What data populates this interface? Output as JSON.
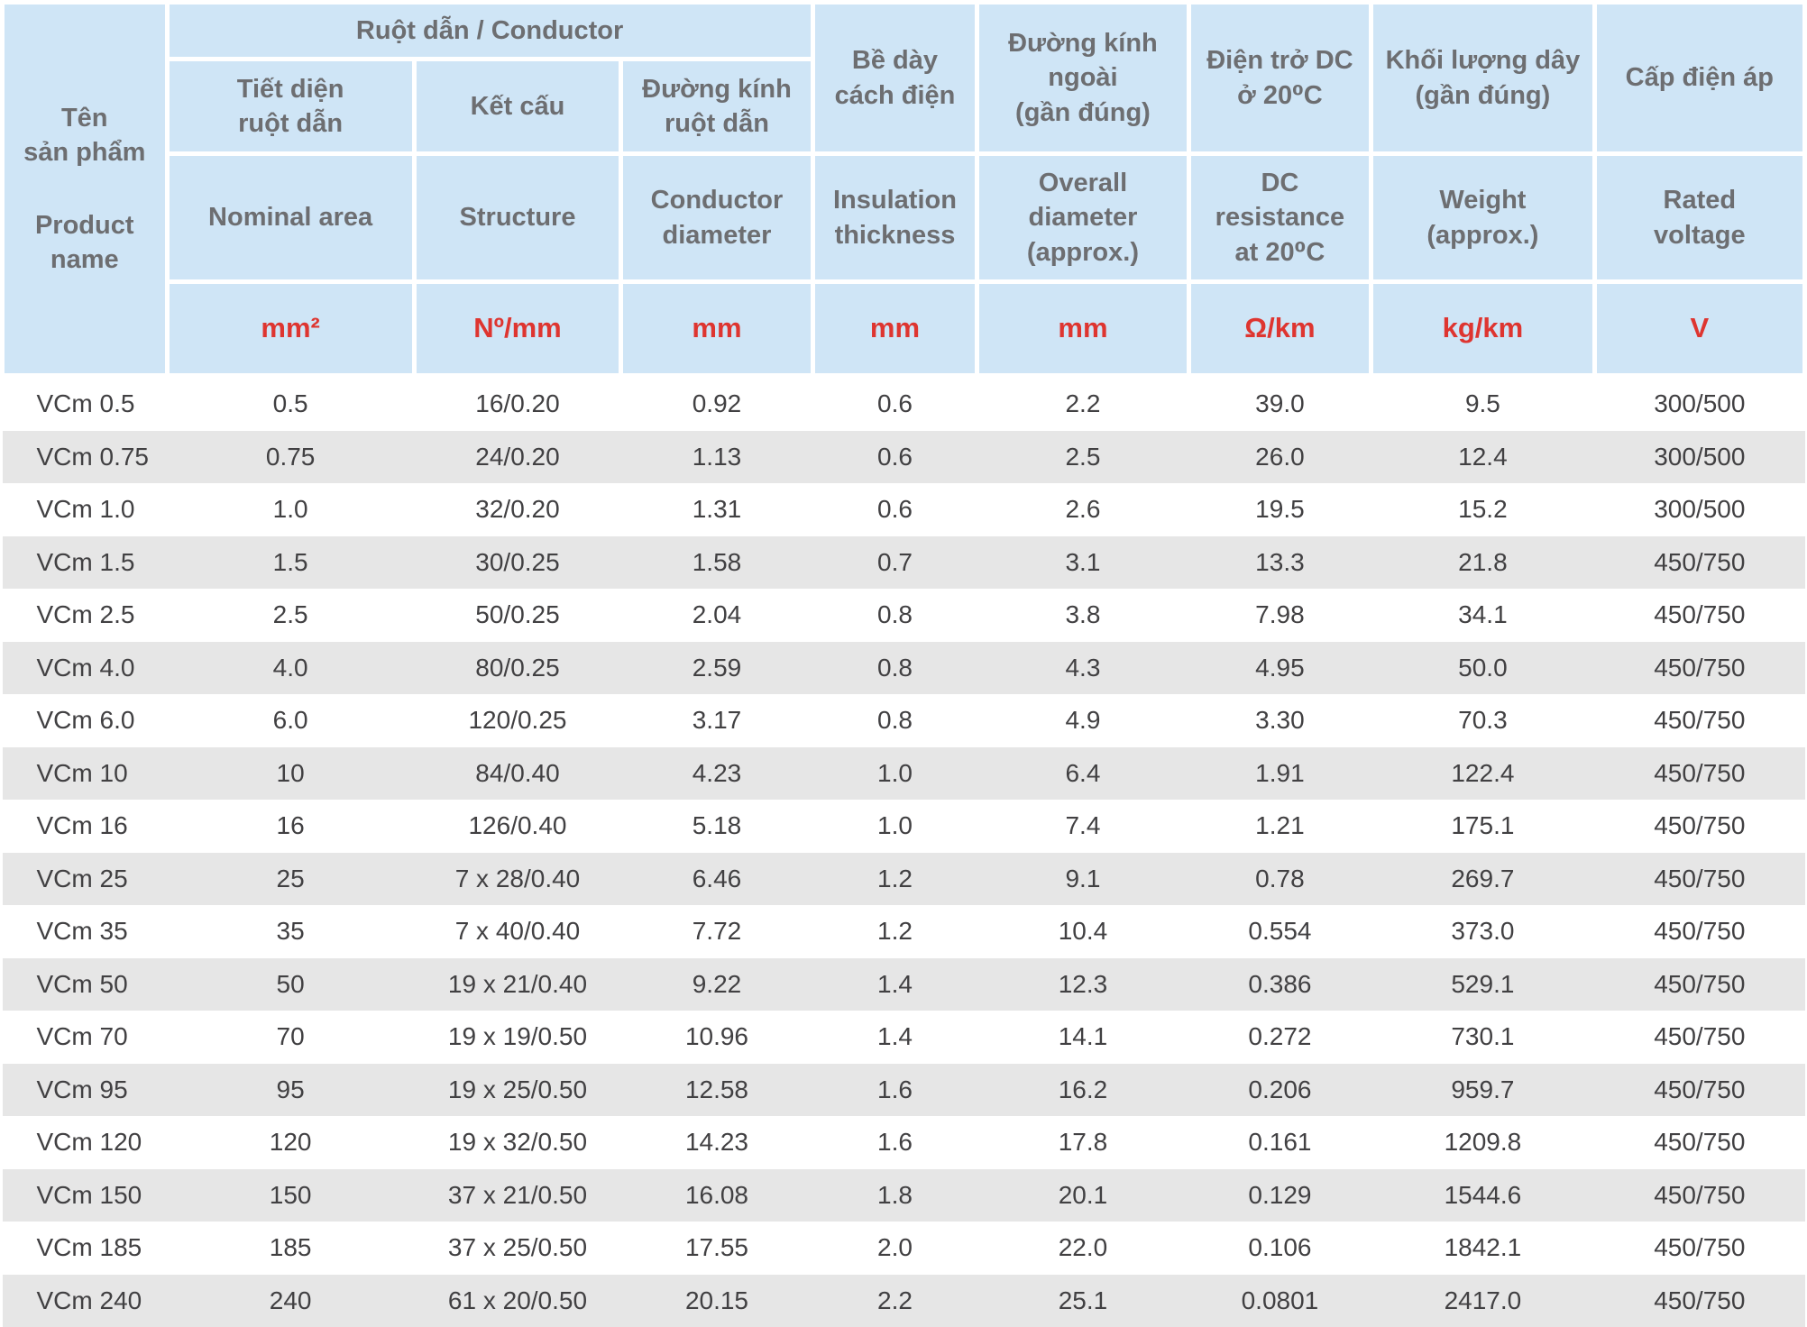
{
  "colors": {
    "header_bg": "#cfe5f6",
    "separator": "#ffffff",
    "header_text": "#6d6e71",
    "unit_red": "#de3530",
    "body_text": "#414042",
    "row_alt_bg": "#e6e6e6"
  },
  "table": {
    "header": {
      "product_col": {
        "vi": "Tên\nsản phẩm",
        "en": "Product\nname"
      },
      "conductor_group": "Ruột dẫn / Conductor",
      "columns": [
        {
          "vi": "Tiết diện\nruột dẫn",
          "en": "Nominal area",
          "unit": "mm²"
        },
        {
          "vi": "Kết cấu",
          "en": "Structure",
          "unit": "Nº/mm"
        },
        {
          "vi": "Đường kính\nruột dẫn",
          "en": "Conductor\ndiameter",
          "unit": "mm"
        },
        {
          "vi": "Bề dày\ncách điện",
          "en": "Insulation\nthickness",
          "unit": "mm"
        },
        {
          "vi": "Đường kính\nngoài\n(gần đúng)",
          "en": "Overall\ndiameter\n(approx.)",
          "unit": "mm"
        },
        {
          "vi": "Điện trở DC\nở 20⁰C",
          "en": "DC\nresistance\nat 20⁰C",
          "unit": "Ω/km"
        },
        {
          "vi": "Khối lượng dây\n(gần đúng)",
          "en": "Weight\n(approx.)",
          "unit": "kg/km"
        },
        {
          "vi": "Cấp điện áp",
          "en": "Rated\nvoltage",
          "unit": "V"
        }
      ]
    },
    "rows": [
      {
        "name": "VCm 0.5",
        "nominal_area": "0.5",
        "structure": "16/0.20",
        "conductor_diameter": "0.92",
        "insulation_thickness": "0.6",
        "overall_diameter": "2.2",
        "dc_resistance": "39.0",
        "weight": "9.5",
        "rated_voltage": "300/500"
      },
      {
        "name": "VCm 0.75",
        "nominal_area": "0.75",
        "structure": "24/0.20",
        "conductor_diameter": "1.13",
        "insulation_thickness": "0.6",
        "overall_diameter": "2.5",
        "dc_resistance": "26.0",
        "weight": "12.4",
        "rated_voltage": "300/500"
      },
      {
        "name": "VCm 1.0",
        "nominal_area": "1.0",
        "structure": "32/0.20",
        "conductor_diameter": "1.31",
        "insulation_thickness": "0.6",
        "overall_diameter": "2.6",
        "dc_resistance": "19.5",
        "weight": "15.2",
        "rated_voltage": "300/500"
      },
      {
        "name": "VCm 1.5",
        "nominal_area": "1.5",
        "structure": "30/0.25",
        "conductor_diameter": "1.58",
        "insulation_thickness": "0.7",
        "overall_diameter": "3.1",
        "dc_resistance": "13.3",
        "weight": "21.8",
        "rated_voltage": "450/750"
      },
      {
        "name": "VCm 2.5",
        "nominal_area": "2.5",
        "structure": "50/0.25",
        "conductor_diameter": "2.04",
        "insulation_thickness": "0.8",
        "overall_diameter": "3.8",
        "dc_resistance": "7.98",
        "weight": "34.1",
        "rated_voltage": "450/750"
      },
      {
        "name": "VCm 4.0",
        "nominal_area": "4.0",
        "structure": "80/0.25",
        "conductor_diameter": "2.59",
        "insulation_thickness": "0.8",
        "overall_diameter": "4.3",
        "dc_resistance": "4.95",
        "weight": "50.0",
        "rated_voltage": "450/750"
      },
      {
        "name": "VCm 6.0",
        "nominal_area": "6.0",
        "structure": "120/0.25",
        "conductor_diameter": "3.17",
        "insulation_thickness": "0.8",
        "overall_diameter": "4.9",
        "dc_resistance": "3.30",
        "weight": "70.3",
        "rated_voltage": "450/750"
      },
      {
        "name": "VCm 10",
        "nominal_area": "10",
        "structure": "84/0.40",
        "conductor_diameter": "4.23",
        "insulation_thickness": "1.0",
        "overall_diameter": "6.4",
        "dc_resistance": "1.91",
        "weight": "122.4",
        "rated_voltage": "450/750"
      },
      {
        "name": "VCm 16",
        "nominal_area": "16",
        "structure": "126/0.40",
        "conductor_diameter": "5.18",
        "insulation_thickness": "1.0",
        "overall_diameter": "7.4",
        "dc_resistance": "1.21",
        "weight": "175.1",
        "rated_voltage": "450/750"
      },
      {
        "name": "VCm 25",
        "nominal_area": "25",
        "structure": "7 x 28/0.40",
        "conductor_diameter": "6.46",
        "insulation_thickness": "1.2",
        "overall_diameter": "9.1",
        "dc_resistance": "0.78",
        "weight": "269.7",
        "rated_voltage": "450/750"
      },
      {
        "name": "VCm 35",
        "nominal_area": "35",
        "structure": "7 x 40/0.40",
        "conductor_diameter": "7.72",
        "insulation_thickness": "1.2",
        "overall_diameter": "10.4",
        "dc_resistance": "0.554",
        "weight": "373.0",
        "rated_voltage": "450/750"
      },
      {
        "name": "VCm 50",
        "nominal_area": "50",
        "structure": "19 x 21/0.40",
        "conductor_diameter": "9.22",
        "insulation_thickness": "1.4",
        "overall_diameter": "12.3",
        "dc_resistance": "0.386",
        "weight": "529.1",
        "rated_voltage": "450/750"
      },
      {
        "name": "VCm 70",
        "nominal_area": "70",
        "structure": "19 x 19/0.50",
        "conductor_diameter": "10.96",
        "insulation_thickness": "1.4",
        "overall_diameter": "14.1",
        "dc_resistance": "0.272",
        "weight": "730.1",
        "rated_voltage": "450/750"
      },
      {
        "name": "VCm 95",
        "nominal_area": "95",
        "structure": "19 x 25/0.50",
        "conductor_diameter": "12.58",
        "insulation_thickness": "1.6",
        "overall_diameter": "16.2",
        "dc_resistance": "0.206",
        "weight": "959.7",
        "rated_voltage": "450/750"
      },
      {
        "name": "VCm 120",
        "nominal_area": "120",
        "structure": "19 x 32/0.50",
        "conductor_diameter": "14.23",
        "insulation_thickness": "1.6",
        "overall_diameter": "17.8",
        "dc_resistance": "0.161",
        "weight": "1209.8",
        "rated_voltage": "450/750"
      },
      {
        "name": "VCm 150",
        "nominal_area": "150",
        "structure": "37 x 21/0.50",
        "conductor_diameter": "16.08",
        "insulation_thickness": "1.8",
        "overall_diameter": "20.1",
        "dc_resistance": "0.129",
        "weight": "1544.6",
        "rated_voltage": "450/750"
      },
      {
        "name": "VCm 185",
        "nominal_area": "185",
        "structure": "37 x 25/0.50",
        "conductor_diameter": "17.55",
        "insulation_thickness": "2.0",
        "overall_diameter": "22.0",
        "dc_resistance": "0.106",
        "weight": "1842.1",
        "rated_voltage": "450/750"
      },
      {
        "name": "VCm 240",
        "nominal_area": "240",
        "structure": "61 x 20/0.50",
        "conductor_diameter": "20.15",
        "insulation_thickness": "2.2",
        "overall_diameter": "25.1",
        "dc_resistance": "0.0801",
        "weight": "2417.0",
        "rated_voltage": "450/750"
      }
    ]
  }
}
